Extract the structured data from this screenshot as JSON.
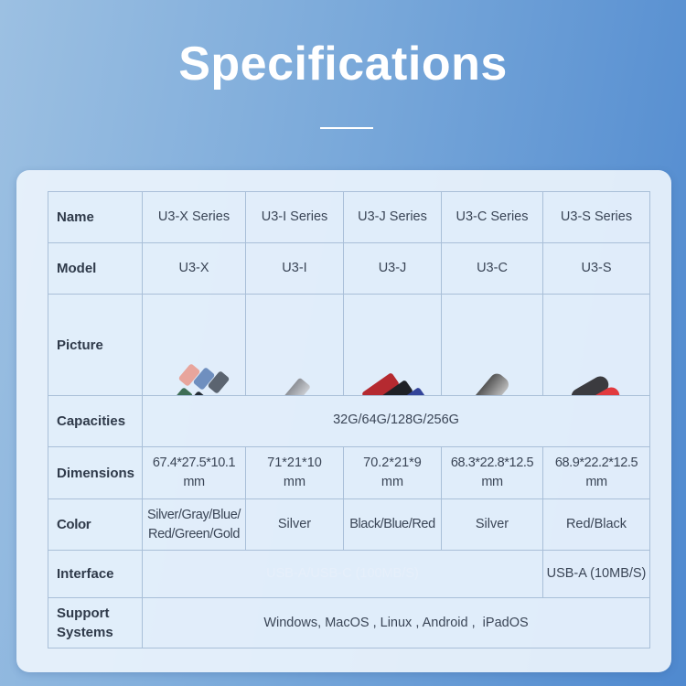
{
  "title": "Specifications",
  "columns": [
    "U3-X Series",
    "U3-I Series",
    "U3-J Series",
    "U3-C Series",
    "U3-S Series"
  ],
  "rows": {
    "name": {
      "label": "Name"
    },
    "model": {
      "label": "Model",
      "values": [
        "U3-X",
        "U3-I",
        "U3-J",
        "U3-C",
        "U3-S"
      ]
    },
    "picture": {
      "label": "Picture",
      "icons": [
        "usb-drive-multicolor-set",
        "usb-drive-silver",
        "usb-drive-red-black-blue",
        "usb-drive-silver-capsule",
        "usb-drive-red-black"
      ]
    },
    "capacities": {
      "label": "Capacities",
      "value": "32G/64G/128G/256G"
    },
    "dimensions": {
      "label": "Dimensions",
      "values": [
        "67.4*27.5*10.1 mm",
        "71*21*10 mm",
        "70.2*21*9 mm",
        "68.3*22.8*12.5 mm",
        "68.9*22.2*12.5 mm"
      ]
    },
    "color": {
      "label": "Color",
      "values": [
        "Silver/Gray/Blue/Red/Green/Gold",
        "Silver",
        "Black/Blue/Red",
        "Silver",
        "Red/Black"
      ]
    },
    "interface": {
      "label": "Interface",
      "shared": "USB-A/USB-C (100MB/S)",
      "last": "USB-A (10MB/S)"
    },
    "support": {
      "label": "Support Systems",
      "value": "Windows, MacOS , Linux , Android ,  iPadOS"
    }
  }
}
